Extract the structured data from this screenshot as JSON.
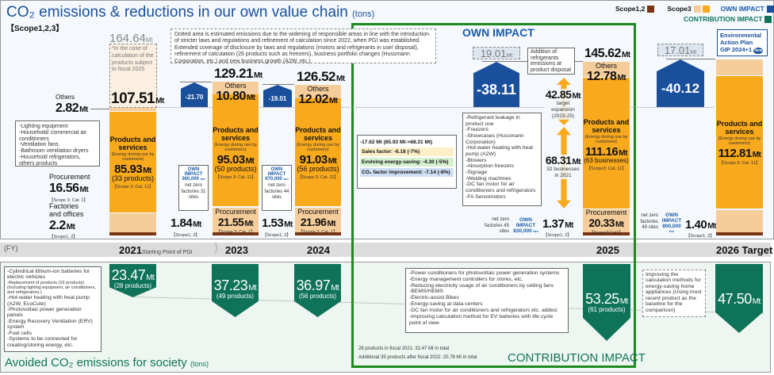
{
  "title": {
    "text": "CO₂ emissions & reductions in our own value chain",
    "unit": "(tons)",
    "scope": "【Scope1,2,3】"
  },
  "legend": {
    "scope12": "Scope1,2",
    "scope3": "Scope3",
    "own": "OWN IMPACT",
    "contribution": "CONTRIBUTION IMPACT",
    "colors": {
      "scope12": "#7a3515",
      "scope3_light": "#f5cd9a",
      "scope3": "#f9a91c",
      "own": "#1a4f9c",
      "contribution": "#0e7358"
    }
  },
  "own_impact_heading": "OWN IMPACT",
  "contribution_heading": "CONTRIBUTION IMPACT",
  "gip": {
    "line1": "Environmental",
    "line2": "Action Plan",
    "line3": "GIP 2024+1",
    "badge": "New"
  },
  "top_note": "Dotted area is estimated emissions due to the widening of responsible areas in line with the introduction of stricter laws and regulations and refinement of calculation since 2022, when PGI was established. Extended coverage of disclosure by laws and regulations (motors and refrigerants in use/ disposal), refinement of calculation (26 products such as freezers), business portfolio changes (Hussmann Corporation, etc.) and new business growth (A2W, etc.)",
  "unit": "Mt",
  "y2021": {
    "total_estimated": "164.64",
    "estimate_note": "*In the case of calculation of the products subject to fiscal 2025",
    "total": "107.51",
    "others_label": "Others",
    "others": "2.82",
    "products_title": "Products and services",
    "products_sub": "(Energy during use by customers)",
    "products": "85.93",
    "products_count": "(33 products)",
    "products_scope": "【Scope 3: Cat. 11】",
    "procurement_label": "Procurement",
    "procurement": "16.56",
    "procurement_scope": "【Scope 3: Cat. 1】",
    "factories_label": "Factories and offices",
    "factories": "2.2",
    "factories_scope": "【Scope1, 2】",
    "product_list": [
      "-Lighting equipment",
      "-Household/ commercial air conditioners",
      "-Ventilation fans",
      "-Bathroom ventilation dryers",
      "-Household refrigerators, others products"
    ]
  },
  "y2023": {
    "total": "129.21",
    "reduction": "-21.70",
    "others_label": "Others",
    "others": "10.80",
    "products_title": "Products and services",
    "products_sub": "(Energy during use by customers)",
    "products": "95.03",
    "products_count": "(50 products)",
    "products_scope": "【Scope 3: Cat. 11】",
    "procurement_label": "Procurement",
    "procurement": "21.55",
    "procurement_scope": "【Scope 3: Cat. 1】",
    "scope12": "1.84",
    "scope12_label": "【Scope1, 2】",
    "own_label": "OWN IMPACT",
    "own_value": "360,000",
    "own_unit": "ton",
    "netzero": "net zero factories 31 sites"
  },
  "y2024": {
    "total": "126.52",
    "reduction": "-19.01",
    "others_label": "Others",
    "others": "12.02",
    "products_title": "Products and services",
    "products_sub": "(Energy during use by customers)",
    "products": "91.03",
    "products_count": "(56 products)",
    "products_scope": "【Scope 3: Cat. 11】",
    "procurement_label": "Procurement",
    "procurement": "21.96",
    "procurement_scope": "【Scope 3: Cat. 1】",
    "scope12": "1.53",
    "scope12_label": "【Scope1, 2】",
    "own_label": "OWN IMPACT",
    "own_value": "670,000",
    "own_unit": "ton",
    "netzero": "net zero factories 44 sites"
  },
  "y2025": {
    "total": "145.62",
    "dashed": "19.01",
    "reduction": "-38.11",
    "refrigerant_note": "Addition of refrigerants emissions at product disposal",
    "expansion": "42.85",
    "expansion_label": "target expansion (2023-25)",
    "base": "68.31",
    "base_label": "32 businesses in 2021",
    "others_label": "Others",
    "others": "12.78",
    "products_title": "Products and services",
    "products_sub": "(Energy during use by customers)",
    "products": "111.16",
    "products_count": "(63 businesses)",
    "products_scope": "【Scope3: Cat. 11】",
    "procurement_label": "Procurement",
    "procurement": "20.33",
    "procurement_scope": "【Scope3:Cat1】",
    "scope12": "1.37",
    "scope12_label": "【Scope1, 2】",
    "own_label": "OWN IMPACT",
    "own_value": "830,000",
    "own_unit": "ton",
    "netzero": "net zero factories 45 sites",
    "factors": {
      "summary": "-17.62 Mt (85.93 Mt->68.31 Mt)",
      "sales": "Sales factor: -6.18 (-7%)",
      "energy": "Evolving energy-saving: -4.30 (-5%)",
      "co2": "CO₂ factor improvement: -7.14 (-8%)"
    },
    "business_list": [
      "-Refrigerant leakage in product use",
      "-Freezers",
      "-Showcases (Hussmann Corporation)",
      "-Hot-water heating with heat pump (A2W)",
      "-Blowers",
      "-Absorption freezers",
      "-Signage",
      "-Welding machines",
      "-DC fan motor for air conditioners and refrigerators",
      "-FA Servomotors"
    ]
  },
  "y2026": {
    "dashed": "17.01",
    "reduction": "-40.12",
    "products_title": "Products and services",
    "products_sub": "(Energy during use by customers)",
    "products": "112.81",
    "products_scope": "【Scope 3: Cat. 11】",
    "scope12": "1.40",
    "scope12_label": "【Scope1, 2】",
    "own_label": "OWN IMPACT",
    "own_value": "800,000",
    "own_unit": "ton",
    "netzero": "net zero factories 49 sites"
  },
  "fy": {
    "label": "(FY)",
    "y2021": "2021",
    "start_note": "Starting Point of PGI",
    "y2023": "2023",
    "y2024": "2024",
    "y2025": "2025",
    "y2026": "2026",
    "target": "Target"
  },
  "avoided": {
    "title": "Avoided CO₂ emissions for society",
    "unit": "(tons)",
    "y2021": {
      "value": "23.47",
      "count": "(28 products)"
    },
    "y2023": {
      "value": "37.23",
      "count": "(49 products)"
    },
    "y2024": {
      "value": "36.97",
      "count": "(56 products)"
    },
    "y2025": {
      "value": "53.25",
      "count": "(61 products)"
    },
    "y2026": {
      "value": "47.50"
    },
    "list2021": [
      "-Cylindrical lithium-ion batteries for electric vehicles",
      "-Replacement of products (19 products) (Including lighting equipment, air conditioners, and refrigerators.)",
      "-Hot-water heating with heat pump (A2W, EcoCute)",
      "-Photovoltaic power generation panels",
      "-Energy Recovery Ventilation (ERV) system",
      "-Fuel cells",
      "-Systems to be connected for creating/storing energy, etc."
    ],
    "list2025": [
      "-Power conditioners for photovoltaic power generation systems",
      "-Energy management controllers for stores, etc.",
      "-Reducing electricity usage of air conditioners by ceiling fans",
      "-BEMS/HEMS",
      "-Electric-assist Bikes",
      "-Energy-saving at data centers",
      "-DC fan motor for air conditioners and refrigerators etc. added.",
      "-Improving calculation method for EV batteries with life cycle point of view"
    ],
    "note2026": "Improving the calculation methods for energy-saving home appliances (Using most recent product as the baseline for the comparison)",
    "footnote1": "26 products in fiscal 2021: 32.47 Mt in total",
    "footnote2": "Additional 35 products after fiscal 2022: 20.78 Mt in total"
  }
}
